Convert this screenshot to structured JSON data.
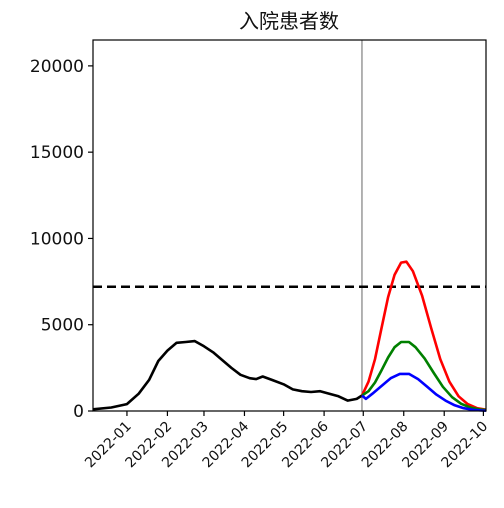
{
  "chart_data": {
    "type": "line",
    "title": "入院患者数",
    "xlabel": "",
    "ylabel": "",
    "ylim": [
      0,
      21500
    ],
    "xlim": [
      "2021-12-06",
      "2022-10-03"
    ],
    "yticks": [
      0,
      5000,
      10000,
      15000,
      20000
    ],
    "xticks": [
      "2022-01",
      "2022-02",
      "2022-03",
      "2022-04",
      "2022-05",
      "2022-06",
      "2022-07",
      "2022-08",
      "2022-09",
      "2022-10"
    ],
    "grid": false,
    "reference_line": {
      "y": 7200,
      "style": "dashed",
      "color": "#000000"
    },
    "vertical_marker": {
      "x": "2022-06-30",
      "color": "#7f7f7f"
    },
    "series": [
      {
        "color": "#000000",
        "points": [
          [
            "2021-12-06",
            100
          ],
          [
            "2021-12-20",
            200
          ],
          [
            "2022-01-01",
            400
          ],
          [
            "2022-01-10",
            1000
          ],
          [
            "2022-01-18",
            1800
          ],
          [
            "2022-01-25",
            2900
          ],
          [
            "2022-02-01",
            3500
          ],
          [
            "2022-02-08",
            3950
          ],
          [
            "2022-02-15",
            4000
          ],
          [
            "2022-02-22",
            4050
          ],
          [
            "2022-03-01",
            3750
          ],
          [
            "2022-03-08",
            3400
          ],
          [
            "2022-03-15",
            2950
          ],
          [
            "2022-03-22",
            2500
          ],
          [
            "2022-03-29",
            2100
          ],
          [
            "2022-04-05",
            1900
          ],
          [
            "2022-04-10",
            1850
          ],
          [
            "2022-04-15",
            2000
          ],
          [
            "2022-04-22",
            1800
          ],
          [
            "2022-05-01",
            1550
          ],
          [
            "2022-05-08",
            1250
          ],
          [
            "2022-05-15",
            1150
          ],
          [
            "2022-05-22",
            1100
          ],
          [
            "2022-05-29",
            1150
          ],
          [
            "2022-06-05",
            1000
          ],
          [
            "2022-06-12",
            850
          ],
          [
            "2022-06-19",
            600
          ],
          [
            "2022-06-26",
            700
          ],
          [
            "2022-06-30",
            900
          ]
        ]
      },
      {
        "color": "#ff0000",
        "points": [
          [
            "2022-06-30",
            900
          ],
          [
            "2022-07-05",
            1700
          ],
          [
            "2022-07-10",
            3000
          ],
          [
            "2022-07-15",
            4800
          ],
          [
            "2022-07-20",
            6600
          ],
          [
            "2022-07-25",
            7900
          ],
          [
            "2022-07-30",
            8600
          ],
          [
            "2022-08-03",
            8650
          ],
          [
            "2022-08-08",
            8100
          ],
          [
            "2022-08-15",
            6700
          ],
          [
            "2022-08-22",
            4800
          ],
          [
            "2022-08-29",
            3000
          ],
          [
            "2022-09-05",
            1700
          ],
          [
            "2022-09-12",
            850
          ],
          [
            "2022-09-19",
            400
          ],
          [
            "2022-09-26",
            170
          ],
          [
            "2022-10-03",
            80
          ]
        ]
      },
      {
        "color": "#008000",
        "points": [
          [
            "2022-06-30",
            900
          ],
          [
            "2022-07-05",
            1150
          ],
          [
            "2022-07-10",
            1650
          ],
          [
            "2022-07-15",
            2350
          ],
          [
            "2022-07-20",
            3100
          ],
          [
            "2022-07-25",
            3700
          ],
          [
            "2022-07-30",
            4000
          ],
          [
            "2022-08-05",
            4000
          ],
          [
            "2022-08-10",
            3700
          ],
          [
            "2022-08-17",
            3050
          ],
          [
            "2022-08-24",
            2200
          ],
          [
            "2022-08-31",
            1400
          ],
          [
            "2022-09-07",
            800
          ],
          [
            "2022-09-14",
            420
          ],
          [
            "2022-09-21",
            200
          ],
          [
            "2022-09-28",
            90
          ],
          [
            "2022-10-03",
            50
          ]
        ]
      },
      {
        "color": "#0000ff",
        "points": [
          [
            "2022-06-30",
            900
          ],
          [
            "2022-07-03",
            700
          ],
          [
            "2022-07-08",
            1000
          ],
          [
            "2022-07-15",
            1450
          ],
          [
            "2022-07-22",
            1900
          ],
          [
            "2022-07-29",
            2150
          ],
          [
            "2022-08-05",
            2150
          ],
          [
            "2022-08-12",
            1850
          ],
          [
            "2022-08-19",
            1400
          ],
          [
            "2022-08-26",
            950
          ],
          [
            "2022-09-02",
            600
          ],
          [
            "2022-09-09",
            330
          ],
          [
            "2022-09-16",
            160
          ],
          [
            "2022-09-23",
            70
          ],
          [
            "2022-09-30",
            30
          ],
          [
            "2022-10-03",
            20
          ]
        ]
      }
    ]
  }
}
